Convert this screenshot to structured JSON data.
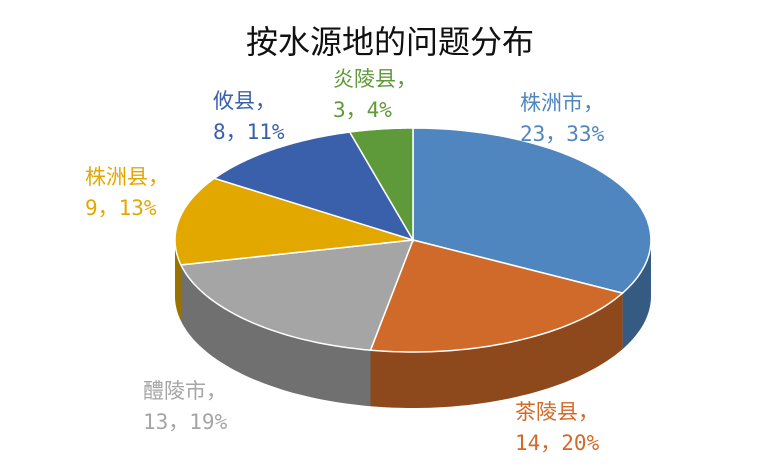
{
  "chart_data": {
    "type": "pie",
    "title": "按水源地的问题分布",
    "categories": [
      "株洲市",
      "茶陵县",
      "醴陵市",
      "株洲县",
      "攸县",
      "炎陵县"
    ],
    "label_separator": "，",
    "values": [
      23,
      14,
      13,
      9,
      8,
      3
    ],
    "value_labels": [
      "23，33%",
      "14，20%",
      "13，19%",
      "9，13%",
      "8，11%",
      "3，4%"
    ],
    "colors": [
      "#4f86c0",
      "#d06a2a",
      "#a5a5a5",
      "#e2a800",
      "#3a60ab",
      "#5f9a3a"
    ]
  }
}
